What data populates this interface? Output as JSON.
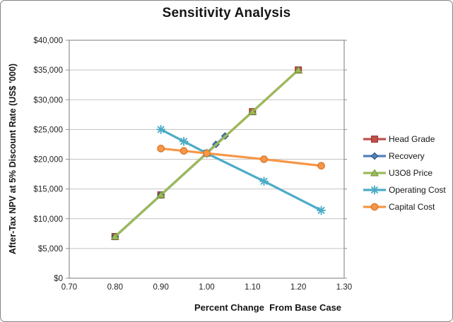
{
  "chart": {
    "title_label": "Sensitivity Analysis"
  },
  "chart_data": {
    "type": "line",
    "title": "Sensitivity Analysis",
    "xlabel": "Percent Change  From Base Case",
    "ylabel": "After-Tax NPV at 5% Discount Rate (US$ '000)",
    "xlim": [
      0.7,
      1.3
    ],
    "ylim": [
      0,
      40000
    ],
    "x_ticks": [
      0.7,
      0.8,
      0.9,
      1.0,
      1.1,
      1.2,
      1.3
    ],
    "x_tick_labels": [
      "0.70",
      "0.80",
      "0.90",
      "1.00",
      "1.10",
      "1.20",
      "1.30"
    ],
    "y_ticks": [
      0,
      5000,
      10000,
      15000,
      20000,
      25000,
      30000,
      35000,
      40000
    ],
    "y_tick_labels": [
      "$0",
      "$5,000",
      "$10,000",
      "$15,000",
      "$20,000",
      "$25,000",
      "$30,000",
      "$35,000",
      "$40,000"
    ],
    "grid": "horizontal-only",
    "legend_position": "right",
    "grid_color": "#C3C3C3",
    "axis_color": "#8F8F8F",
    "series": [
      {
        "name": "Head Grade",
        "marker": "square",
        "color": "#C0504D",
        "edge_color": "#943634",
        "points": [
          [
            0.8,
            7000
          ],
          [
            0.9,
            14000
          ],
          [
            1.0,
            21000
          ],
          [
            1.1,
            28000
          ],
          [
            1.2,
            35000
          ]
        ]
      },
      {
        "name": "Recovery",
        "marker": "diamond",
        "color": "#4F81BD",
        "edge_color": "#2C4D75",
        "points": [
          [
            0.8,
            7000
          ],
          [
            0.9,
            14000
          ],
          [
            1.0,
            21000
          ],
          [
            1.02,
            22500
          ],
          [
            1.04,
            23900
          ]
        ]
      },
      {
        "name": "U3O8 Price",
        "marker": "triangle",
        "color": "#9BBB59",
        "edge_color": "#77933C",
        "points": [
          [
            0.8,
            7000
          ],
          [
            0.9,
            14000
          ],
          [
            1.0,
            21000
          ],
          [
            1.1,
            28000
          ],
          [
            1.2,
            35000
          ]
        ]
      },
      {
        "name": "Operating Cost",
        "marker": "asterisk",
        "color": "#4BACC6",
        "edge_color": "#31859B",
        "points": [
          [
            0.9,
            25000
          ],
          [
            0.95,
            23000
          ],
          [
            1.0,
            21000
          ],
          [
            1.125,
            16300
          ],
          [
            1.25,
            11400
          ]
        ]
      },
      {
        "name": "Capital Cost",
        "marker": "circle",
        "color": "#F79646",
        "edge_color": "#CB6C1D",
        "points": [
          [
            0.9,
            21800
          ],
          [
            0.95,
            21400
          ],
          [
            1.0,
            21000
          ],
          [
            1.125,
            20000
          ],
          [
            1.25,
            18900
          ]
        ]
      }
    ]
  }
}
